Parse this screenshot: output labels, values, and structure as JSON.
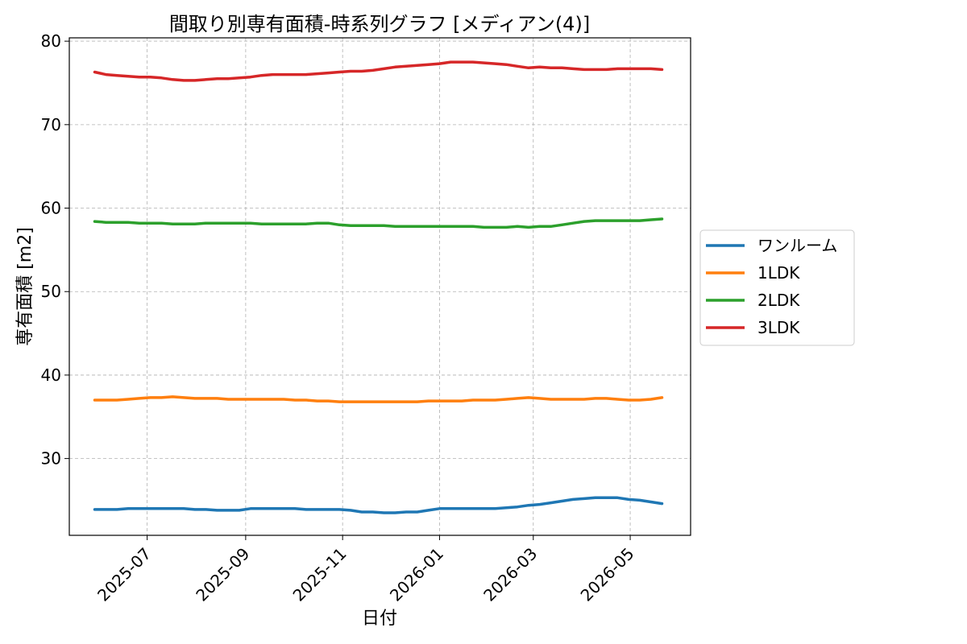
{
  "chart_data": {
    "type": "line",
    "title": "間取り別専有面積-時系列グラフ [メディアン(4)]",
    "xlabel": "日付",
    "ylabel": "専有面積 [m2]",
    "x_ticks": [
      "2025-07",
      "2025-09",
      "2025-11",
      "2026-01",
      "2026-03",
      "2026-05"
    ],
    "y_ticks": [
      30,
      40,
      50,
      60,
      70,
      80
    ],
    "xlim": [
      "2025-05-13",
      "2026-06-08"
    ],
    "ylim": [
      20.8,
      80.4
    ],
    "grid": true,
    "legend_position": "right",
    "x": [
      "2025-05-29",
      "2025-06-05",
      "2025-06-12",
      "2025-06-19",
      "2025-06-26",
      "2025-07-03",
      "2025-07-10",
      "2025-07-17",
      "2025-07-24",
      "2025-07-31",
      "2025-08-07",
      "2025-08-14",
      "2025-08-21",
      "2025-08-28",
      "2025-09-04",
      "2025-09-11",
      "2025-09-18",
      "2025-09-25",
      "2025-10-02",
      "2025-10-09",
      "2025-10-16",
      "2025-10-23",
      "2025-10-30",
      "2025-11-06",
      "2025-11-13",
      "2025-11-20",
      "2025-11-27",
      "2025-12-04",
      "2025-12-11",
      "2025-12-18",
      "2025-12-25",
      "2026-01-01",
      "2026-01-08",
      "2026-01-15",
      "2026-01-22",
      "2026-01-29",
      "2026-02-05",
      "2026-02-12",
      "2026-02-19",
      "2026-02-26",
      "2026-03-05",
      "2026-03-12",
      "2026-03-19",
      "2026-03-26",
      "2026-04-02",
      "2026-04-09",
      "2026-04-16",
      "2026-04-23",
      "2026-04-30",
      "2026-05-07",
      "2026-05-14",
      "2026-05-21"
    ],
    "series": [
      {
        "name": "ワンルーム",
        "color": "#1f77b4",
        "values": [
          23.9,
          23.9,
          23.9,
          24.0,
          24.0,
          24.0,
          24.0,
          24.0,
          24.0,
          23.9,
          23.9,
          23.8,
          23.8,
          23.8,
          24.0,
          24.0,
          24.0,
          24.0,
          24.0,
          23.9,
          23.9,
          23.9,
          23.9,
          23.8,
          23.6,
          23.6,
          23.5,
          23.5,
          23.6,
          23.6,
          23.8,
          24.0,
          24.0,
          24.0,
          24.0,
          24.0,
          24.0,
          24.1,
          24.2,
          24.4,
          24.5,
          24.7,
          24.9,
          25.1,
          25.2,
          25.3,
          25.3,
          25.3,
          25.1,
          25.0,
          24.8,
          24.6
        ]
      },
      {
        "name": "1LDK",
        "color": "#ff7f0e",
        "values": [
          37.0,
          37.0,
          37.0,
          37.1,
          37.2,
          37.3,
          37.3,
          37.4,
          37.3,
          37.2,
          37.2,
          37.2,
          37.1,
          37.1,
          37.1,
          37.1,
          37.1,
          37.1,
          37.0,
          37.0,
          36.9,
          36.9,
          36.8,
          36.8,
          36.8,
          36.8,
          36.8,
          36.8,
          36.8,
          36.8,
          36.9,
          36.9,
          36.9,
          36.9,
          37.0,
          37.0,
          37.0,
          37.1,
          37.2,
          37.3,
          37.2,
          37.1,
          37.1,
          37.1,
          37.1,
          37.2,
          37.2,
          37.1,
          37.0,
          37.0,
          37.1,
          37.3
        ]
      },
      {
        "name": "2LDK",
        "color": "#2ca02c",
        "values": [
          58.4,
          58.3,
          58.3,
          58.3,
          58.2,
          58.2,
          58.2,
          58.1,
          58.1,
          58.1,
          58.2,
          58.2,
          58.2,
          58.2,
          58.2,
          58.1,
          58.1,
          58.1,
          58.1,
          58.1,
          58.2,
          58.2,
          58.0,
          57.9,
          57.9,
          57.9,
          57.9,
          57.8,
          57.8,
          57.8,
          57.8,
          57.8,
          57.8,
          57.8,
          57.8,
          57.7,
          57.7,
          57.7,
          57.8,
          57.7,
          57.8,
          57.8,
          58.0,
          58.2,
          58.4,
          58.5,
          58.5,
          58.5,
          58.5,
          58.5,
          58.6,
          58.7
        ]
      },
      {
        "name": "3LDK",
        "color": "#d62728",
        "values": [
          76.3,
          76.0,
          75.9,
          75.8,
          75.7,
          75.7,
          75.6,
          75.4,
          75.3,
          75.3,
          75.4,
          75.5,
          75.5,
          75.6,
          75.7,
          75.9,
          76.0,
          76.0,
          76.0,
          76.0,
          76.1,
          76.2,
          76.3,
          76.4,
          76.4,
          76.5,
          76.7,
          76.9,
          77.0,
          77.1,
          77.2,
          77.3,
          77.5,
          77.5,
          77.5,
          77.4,
          77.3,
          77.2,
          77.0,
          76.8,
          76.9,
          76.8,
          76.8,
          76.7,
          76.6,
          76.6,
          76.6,
          76.7,
          76.7,
          76.7,
          76.7,
          76.6
        ]
      }
    ]
  }
}
